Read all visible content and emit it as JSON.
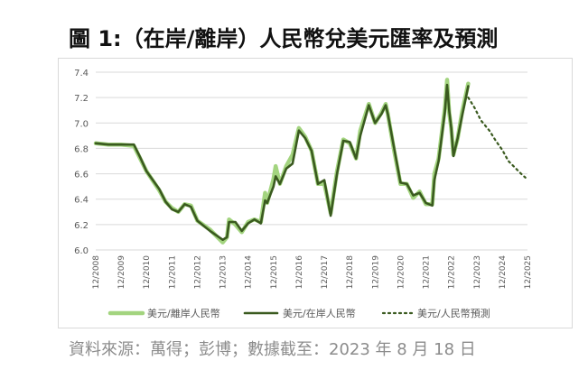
{
  "figure": {
    "title": "圖 1:（在岸/離岸）人民幣兌美元匯率及預測",
    "source": "資料來源：萬得；彭博；數據截至：2023 年 8 月 18 日"
  },
  "colors": {
    "offshore": "#a3d47f",
    "onshore": "#3a5a1f",
    "forecast": "#3a5a1f",
    "grid": "#d9d9d9",
    "axis_text": "#595959"
  },
  "chart_data": {
    "type": "line",
    "title": "",
    "xlabel": "",
    "ylabel": "",
    "xlim": [
      "2008-12",
      "2025-12"
    ],
    "ylim": [
      6.0,
      7.4
    ],
    "y_ticks": [
      "7.4",
      "7.2",
      "7.0",
      "6.8",
      "6.6",
      "6.4",
      "6.2",
      "6.0"
    ],
    "x_ticks": [
      "12/2008",
      "12/2009",
      "12/2010",
      "12/2011",
      "12/2012",
      "12/2013",
      "12/2014",
      "12/2015",
      "12/2016",
      "12/2017",
      "12/2018",
      "12/2019",
      "12/2020",
      "12/2021",
      "12/2022",
      "12/2023",
      "12/2024",
      "12/2025"
    ],
    "grid": "horizontal",
    "legend_position": "bottom",
    "series": [
      {
        "name": "美元/離岸人民幣",
        "style": "solid-light",
        "x": [
          "2008-12",
          "2009-06",
          "2009-12",
          "2010-06",
          "2010-09",
          "2010-12",
          "2011-06",
          "2011-09",
          "2011-12",
          "2012-03",
          "2012-06",
          "2012-09",
          "2012-12",
          "2013-06",
          "2013-12",
          "2014-02",
          "2014-03",
          "2014-06",
          "2014-09",
          "2014-12",
          "2015-03",
          "2015-06",
          "2015-08",
          "2015-09",
          "2015-12",
          "2016-01",
          "2016-03",
          "2016-06",
          "2016-09",
          "2016-12",
          "2017-03",
          "2017-06",
          "2017-09",
          "2017-12",
          "2018-03",
          "2018-06",
          "2018-09",
          "2018-12",
          "2019-03",
          "2019-05",
          "2019-09",
          "2019-12",
          "2020-03",
          "2020-05",
          "2020-06",
          "2020-09",
          "2020-12",
          "2021-03",
          "2021-06",
          "2021-09",
          "2021-12",
          "2022-03",
          "2022-04",
          "2022-06",
          "2022-09",
          "2022-10",
          "2022-11",
          "2022-12",
          "2023-01",
          "2023-03",
          "2023-05",
          "2023-08"
        ],
        "values": [
          6.84,
          6.83,
          6.83,
          6.82,
          6.72,
          6.62,
          6.47,
          6.38,
          6.33,
          6.3,
          6.36,
          6.35,
          6.23,
          6.16,
          6.06,
          6.1,
          6.24,
          6.2,
          6.14,
          6.22,
          6.24,
          6.22,
          6.45,
          6.37,
          6.56,
          6.66,
          6.52,
          6.66,
          6.75,
          6.96,
          6.89,
          6.78,
          6.52,
          6.52,
          6.29,
          6.62,
          6.87,
          6.84,
          6.72,
          6.94,
          7.15,
          7.0,
          7.08,
          7.15,
          7.07,
          6.78,
          6.52,
          6.52,
          6.41,
          6.46,
          6.36,
          6.36,
          6.6,
          6.72,
          7.12,
          7.34,
          7.08,
          6.96,
          6.75,
          6.88,
          7.08,
          7.31
        ]
      },
      {
        "name": "美元/在岸人民幣",
        "style": "solid-dark",
        "x": [
          "2008-12",
          "2009-06",
          "2009-12",
          "2010-06",
          "2010-09",
          "2010-12",
          "2011-06",
          "2011-09",
          "2011-12",
          "2012-03",
          "2012-06",
          "2012-09",
          "2012-12",
          "2013-06",
          "2013-12",
          "2014-02",
          "2014-03",
          "2014-06",
          "2014-09",
          "2014-12",
          "2015-03",
          "2015-06",
          "2015-08",
          "2015-09",
          "2015-12",
          "2016-01",
          "2016-03",
          "2016-06",
          "2016-09",
          "2016-12",
          "2017-03",
          "2017-06",
          "2017-09",
          "2017-12",
          "2018-03",
          "2018-06",
          "2018-09",
          "2018-12",
          "2019-03",
          "2019-05",
          "2019-09",
          "2019-12",
          "2020-03",
          "2020-05",
          "2020-06",
          "2020-09",
          "2020-12",
          "2021-03",
          "2021-06",
          "2021-09",
          "2021-12",
          "2022-03",
          "2022-04",
          "2022-06",
          "2022-09",
          "2022-10",
          "2022-11",
          "2022-12",
          "2023-01",
          "2023-03",
          "2023-05",
          "2023-08"
        ],
        "values": [
          6.84,
          6.83,
          6.83,
          6.83,
          6.73,
          6.62,
          6.48,
          6.38,
          6.32,
          6.3,
          6.36,
          6.34,
          6.23,
          6.15,
          6.08,
          6.1,
          6.22,
          6.22,
          6.15,
          6.21,
          6.24,
          6.21,
          6.39,
          6.37,
          6.5,
          6.58,
          6.52,
          6.64,
          6.68,
          6.94,
          6.88,
          6.78,
          6.52,
          6.55,
          6.27,
          6.6,
          6.86,
          6.85,
          6.72,
          6.9,
          7.14,
          7.0,
          7.07,
          7.14,
          7.07,
          6.8,
          6.53,
          6.52,
          6.43,
          6.45,
          6.37,
          6.35,
          6.55,
          6.7,
          7.09,
          7.3,
          7.1,
          6.96,
          6.74,
          6.88,
          7.05,
          7.29
        ]
      },
      {
        "name": "美元/人民幣預測",
        "style": "dotted",
        "x": [
          "2023-08",
          "2023-11",
          "2024-02",
          "2024-06",
          "2024-09",
          "2024-12",
          "2025-03",
          "2025-06",
          "2025-09",
          "2025-11"
        ],
        "values": [
          7.2,
          7.12,
          7.02,
          6.94,
          6.86,
          6.79,
          6.7,
          6.65,
          6.6,
          6.57
        ]
      }
    ]
  }
}
